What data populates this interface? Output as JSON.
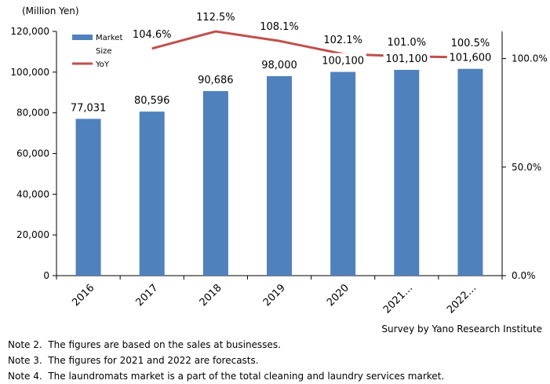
{
  "chart_data": {
    "type": "bar+line",
    "unit_label": "(Million Yen)",
    "categories": [
      "2016",
      "2017",
      "2018",
      "2019",
      "2020",
      "2021…",
      "2022…"
    ],
    "series": [
      {
        "name": "Market Size",
        "axis": "left",
        "type": "bar",
        "color": "#4f81bd",
        "values": [
          77031,
          80596,
          90686,
          98000,
          100100,
          101100,
          101600
        ],
        "labels": [
          "77,031",
          "80,596",
          "90,686",
          "98,000",
          "100,100",
          "101,100",
          "101,600"
        ]
      },
      {
        "name": "YoY",
        "axis": "right",
        "type": "line",
        "color": "#c0504d",
        "values": [
          null,
          104.6,
          112.5,
          108.1,
          102.1,
          101.0,
          100.5
        ],
        "labels": [
          "",
          "104.6%",
          "112.5%",
          "108.1%",
          "102.1%",
          "101.0%",
          "100.5%"
        ]
      }
    ],
    "legend": {
      "market_line1": "Market",
      "market_line2": "Size",
      "yoy": "YoY"
    },
    "y_left": {
      "min": 0,
      "max": 120000,
      "ticks": [
        "0",
        "20,000",
        "40,000",
        "60,000",
        "80,000",
        "100,000",
        "120,000"
      ]
    },
    "y_right": {
      "min": 0,
      "max": 112.5,
      "ticks": [
        "0.0%",
        "50.0%",
        "100.0%"
      ],
      "tick_values": [
        0,
        50,
        100
      ]
    }
  },
  "source": "Survey by Yano Research Institute",
  "notes": [
    {
      "label": "Note 2.",
      "text": "The figures are based on the sales at businesses."
    },
    {
      "label": "Note 3.",
      "text": "The figures for 2021 and 2022 are forecasts."
    },
    {
      "label": "Note 4.",
      "text": "The laundromats market is a part of the total cleaning and laundry services market."
    }
  ]
}
